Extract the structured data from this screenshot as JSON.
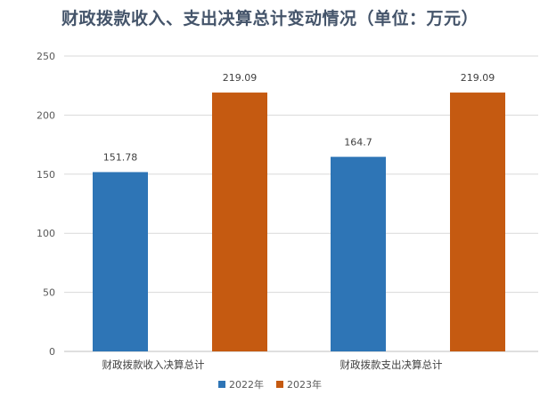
{
  "chart_data": {
    "type": "bar",
    "title": "财政拨款收入、支出决算总计变动情况（单位：万元）",
    "categories": [
      "财政拨款收入决算总计",
      "财政拨款支出决算总计"
    ],
    "series": [
      {
        "name": "2022年",
        "values": [
          151.78,
          164.7
        ],
        "labels": [
          "151.78",
          "164.7"
        ],
        "color": "#2e75b6"
      },
      {
        "name": "2023年",
        "values": [
          219.09,
          219.09
        ],
        "labels": [
          "219.09",
          "219.09"
        ],
        "color": "#c55a11"
      }
    ],
    "ylim": [
      0,
      250
    ],
    "yticks": [
      "0",
      "50",
      "100",
      "150",
      "200",
      "250"
    ],
    "grid": true,
    "legend": "bottom"
  }
}
